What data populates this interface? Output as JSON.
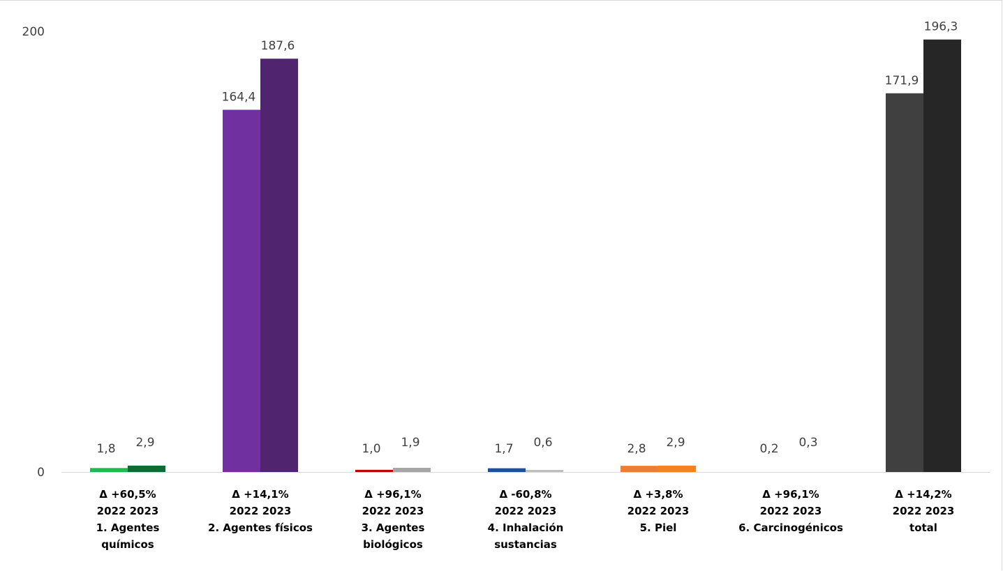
{
  "chart_data": {
    "type": "bar",
    "y_min": 0,
    "y_max": 200,
    "y_ticks": [
      "0",
      "200"
    ],
    "grid": false,
    "legend": "none",
    "series_names": [
      "2022",
      "2023"
    ],
    "categories": [
      {
        "delta": "Δ +60,5%",
        "years": "2022 2023",
        "name": "1. Agentes químicos",
        "name_lines": [
          "1. Agentes",
          "químicos"
        ],
        "values": [
          1.8,
          2.9
        ],
        "value_labels": [
          "1,8",
          "2,9"
        ],
        "colors": [
          "#1db954",
          "#0e6b32"
        ]
      },
      {
        "delta": "Δ +14,1%",
        "years": "2022 2023",
        "name": "2. Agentes físicos",
        "name_lines": [
          "2. Agentes físicos"
        ],
        "values": [
          164.4,
          187.6
        ],
        "value_labels": [
          "164,4",
          "187,6"
        ],
        "colors": [
          "#7030a0",
          "#512470"
        ]
      },
      {
        "delta": "Δ +96,1%",
        "years": "2022 2023",
        "name": "3. Agentes biológicos",
        "name_lines": [
          "3. Agentes",
          "biológicos"
        ],
        "values": [
          1.0,
          1.9
        ],
        "value_labels": [
          "1,0",
          "1,9"
        ],
        "colors": [
          "#c00000",
          "#a6a6a6"
        ]
      },
      {
        "delta": "Δ -60,8%",
        "years": "2022 2023",
        "name": "4. Inhalación sustancias",
        "name_lines": [
          "4. Inhalación",
          "sustancias"
        ],
        "values": [
          1.7,
          0.6
        ],
        "value_labels": [
          "1,7",
          "0,6"
        ],
        "colors": [
          "#1f4e9c",
          "#bfbfbf"
        ]
      },
      {
        "delta": "Δ +3,8%",
        "years": "2022 2023",
        "name": "5. Piel",
        "name_lines": [
          "5. Piel"
        ],
        "values": [
          2.8,
          2.9
        ],
        "value_labels": [
          "2,8",
          "2,9"
        ],
        "colors": [
          "#ed7d31",
          "#f58220"
        ]
      },
      {
        "delta": "Δ +96,1%",
        "years": "2022 2023",
        "name": "6. Carcinogénicos",
        "name_lines": [
          "6. Carcinogénicos"
        ],
        "values": [
          0.2,
          0.3
        ],
        "value_labels": [
          "0,2",
          "0,3"
        ],
        "colors": [
          "#ffffff",
          "#ffffff"
        ]
      },
      {
        "delta": "Δ +14,2%",
        "years": "2022 2023",
        "name": "total",
        "name_lines": [
          "total"
        ],
        "values": [
          171.9,
          196.3
        ],
        "value_labels": [
          "171,9",
          "196,3"
        ],
        "colors": [
          "#404040",
          "#262626"
        ]
      }
    ]
  }
}
